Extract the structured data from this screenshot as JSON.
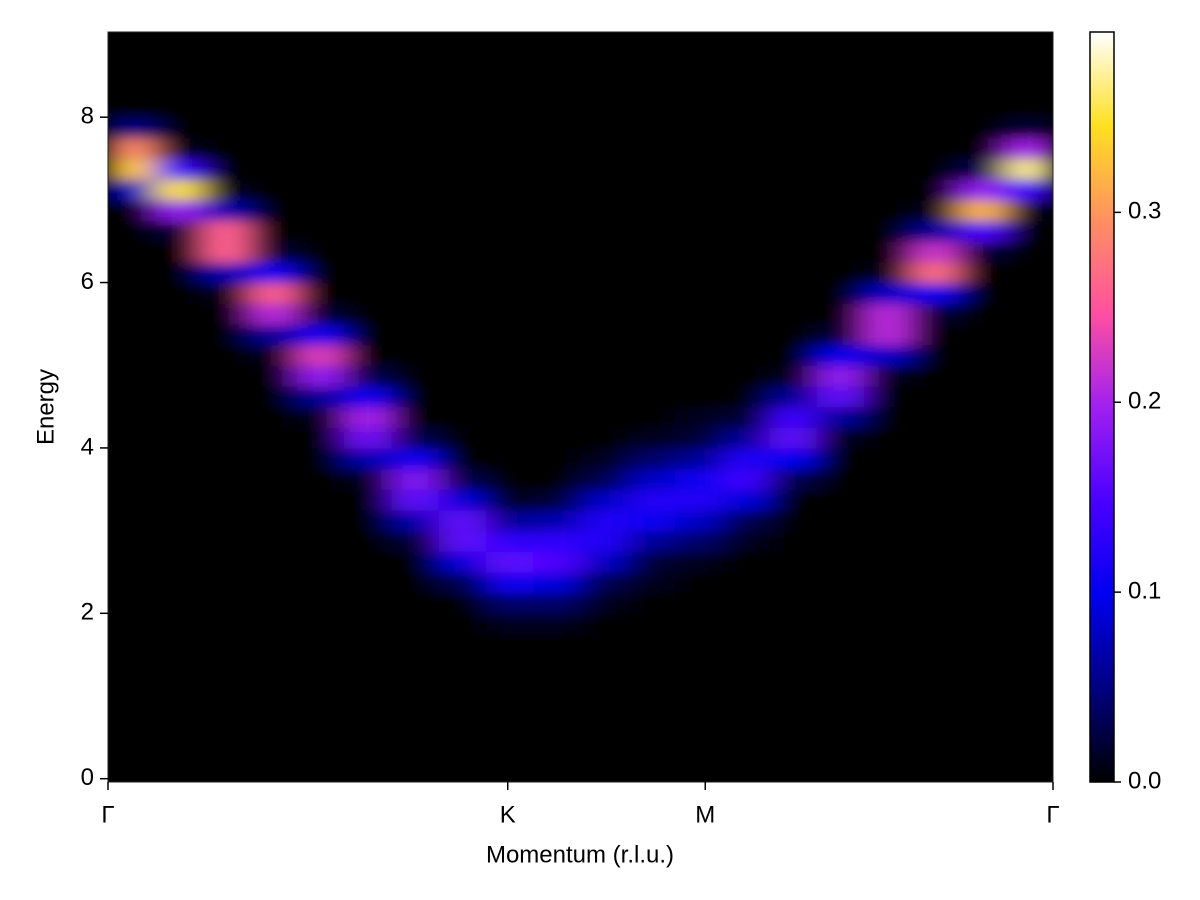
{
  "chart_data": {
    "type": "heatmap",
    "xlabel": "Momentum (r.l.u.)",
    "ylabel": "Energy",
    "xlim": [
      0,
      1
    ],
    "ylim": [
      -0.04,
      9.03
    ],
    "xticks": [
      {
        "value": 0,
        "label": "Γ"
      },
      {
        "value": 0.423,
        "label": "K"
      },
      {
        "value": 0.632,
        "label": "M"
      },
      {
        "value": 1,
        "label": "Γ"
      }
    ],
    "yticks": [
      0,
      2,
      4,
      6,
      8
    ],
    "xbins": [
      0,
      0.05,
      0.1,
      0.15,
      0.2,
      0.25,
      0.3,
      0.35,
      0.4,
      0.45,
      0.5,
      0.55,
      0.6,
      0.65,
      0.7,
      0.75,
      0.8,
      0.85,
      0.9,
      0.95,
      1
    ],
    "ybins": [
      0,
      0.25,
      0.5,
      0.75,
      1,
      1.25,
      1.5,
      1.75,
      2,
      2.25,
      2.5,
      2.75,
      3,
      3.25,
      3.5,
      3.75,
      4,
      4.25,
      4.5,
      4.75,
      5,
      5.25,
      5.5,
      5.75,
      6,
      6.25,
      6.5,
      6.75,
      7,
      7.25,
      7.5,
      7.75,
      8,
      8.25,
      8.5,
      8.75,
      9
    ],
    "values": [
      [
        0,
        0,
        0,
        0,
        0,
        0,
        0,
        0,
        0,
        0,
        0,
        0,
        0,
        0,
        0,
        0,
        0,
        0,
        0,
        0
      ],
      [
        0,
        0,
        0,
        0,
        0,
        0,
        0,
        0,
        0,
        0,
        0,
        0,
        0,
        0,
        0,
        0,
        0,
        0,
        0,
        0
      ],
      [
        0,
        0,
        0,
        0,
        0,
        0,
        0,
        0,
        0,
        0,
        0,
        0,
        0,
        0,
        0,
        0,
        0,
        0,
        0,
        0
      ],
      [
        0,
        0,
        0,
        0,
        0,
        0,
        0,
        0,
        0,
        0,
        0,
        0,
        0,
        0,
        0,
        0,
        0,
        0,
        0,
        0
      ],
      [
        0,
        0,
        0,
        0,
        0,
        0,
        0,
        0,
        0,
        0,
        0,
        0,
        0,
        0,
        0,
        0,
        0,
        0,
        0,
        0
      ],
      [
        0,
        0,
        0,
        0,
        0,
        0,
        0,
        0,
        0,
        0,
        0,
        0,
        0,
        0,
        0,
        0,
        0,
        0,
        0,
        0
      ],
      [
        0,
        0,
        0,
        0,
        0,
        0,
        0,
        0,
        0,
        0,
        0,
        0,
        0,
        0,
        0,
        0,
        0,
        0,
        0,
        0
      ],
      [
        0,
        0,
        0,
        0,
        0,
        0,
        0,
        0,
        0.01,
        0.01,
        0,
        0,
        0,
        0,
        0,
        0,
        0,
        0,
        0,
        0
      ],
      [
        0,
        0,
        0,
        0,
        0,
        0,
        0,
        0,
        0.04,
        0.04,
        0.01,
        0,
        0,
        0,
        0,
        0,
        0,
        0,
        0,
        0
      ],
      [
        0,
        0,
        0,
        0,
        0,
        0,
        0,
        0.03,
        0.11,
        0.09,
        0.03,
        0.01,
        0,
        0,
        0,
        0,
        0,
        0,
        0,
        0
      ],
      [
        0,
        0,
        0,
        0,
        0,
        0,
        0,
        0.09,
        0.16,
        0.15,
        0.08,
        0.02,
        0.01,
        0,
        0,
        0,
        0,
        0,
        0,
        0
      ],
      [
        0,
        0,
        0,
        0,
        0,
        0,
        0.02,
        0.16,
        0.13,
        0.13,
        0.12,
        0.06,
        0.04,
        0.01,
        0,
        0,
        0,
        0,
        0,
        0
      ],
      [
        0,
        0,
        0,
        0,
        0,
        0,
        0.07,
        0.16,
        0.06,
        0.07,
        0.12,
        0.11,
        0.08,
        0.03,
        0,
        0,
        0,
        0,
        0,
        0
      ],
      [
        0,
        0,
        0,
        0,
        0,
        0,
        0.16,
        0.09,
        0.01,
        0.02,
        0.08,
        0.12,
        0.12,
        0.09,
        0,
        0,
        0,
        0,
        0,
        0
      ],
      [
        0,
        0,
        0,
        0,
        0,
        0.01,
        0.18,
        0.03,
        0,
        0,
        0.03,
        0.08,
        0.11,
        0.14,
        0.03,
        0,
        0,
        0,
        0,
        0
      ],
      [
        0,
        0,
        0,
        0,
        0,
        0.07,
        0.11,
        0,
        0,
        0,
        0.01,
        0.04,
        0.06,
        0.12,
        0.1,
        0,
        0,
        0,
        0,
        0
      ],
      [
        0,
        0,
        0,
        0,
        0,
        0.17,
        0.03,
        0,
        0,
        0,
        0,
        0.01,
        0.02,
        0.06,
        0.16,
        0.01,
        0,
        0,
        0,
        0
      ],
      [
        0,
        0,
        0,
        0,
        0.01,
        0.2,
        0,
        0,
        0,
        0,
        0,
        0,
        0.01,
        0.02,
        0.14,
        0.06,
        0,
        0,
        0,
        0
      ],
      [
        0,
        0,
        0,
        0,
        0.06,
        0.11,
        0,
        0,
        0,
        0,
        0,
        0,
        0,
        0,
        0.06,
        0.16,
        0,
        0,
        0,
        0
      ],
      [
        0,
        0,
        0,
        0,
        0.19,
        0.03,
        0,
        0,
        0,
        0,
        0,
        0,
        0,
        0,
        0.01,
        0.19,
        0.01,
        0,
        0,
        0
      ],
      [
        0,
        0,
        0,
        0.01,
        0.23,
        0,
        0,
        0,
        0,
        0,
        0,
        0,
        0,
        0,
        0,
        0.1,
        0.08,
        0,
        0,
        0
      ],
      [
        0,
        0,
        0,
        0.06,
        0.11,
        0,
        0,
        0,
        0,
        0,
        0,
        0,
        0,
        0,
        0,
        0.02,
        0.21,
        0,
        0,
        0
      ],
      [
        0,
        0,
        0,
        0.21,
        0.02,
        0,
        0,
        0,
        0,
        0,
        0,
        0,
        0,
        0,
        0,
        0,
        0.21,
        0.02,
        0,
        0
      ],
      [
        0,
        0,
        0.01,
        0.26,
        0,
        0,
        0,
        0,
        0,
        0,
        0,
        0,
        0,
        0,
        0,
        0,
        0.08,
        0.11,
        0,
        0
      ],
      [
        0,
        0,
        0.07,
        0.11,
        0,
        0,
        0,
        0,
        0,
        0,
        0,
        0,
        0,
        0,
        0,
        0,
        0.01,
        0.27,
        0,
        0
      ],
      [
        0,
        0,
        0.26,
        0.02,
        0,
        0,
        0,
        0,
        0,
        0,
        0,
        0,
        0,
        0,
        0,
        0,
        0,
        0.22,
        0.02,
        0
      ],
      [
        0,
        0.02,
        0.26,
        0,
        0,
        0,
        0,
        0,
        0,
        0,
        0,
        0,
        0,
        0,
        0,
        0,
        0,
        0.06,
        0.15,
        0
      ],
      [
        0,
        0.19,
        0.07,
        0,
        0,
        0,
        0,
        0,
        0,
        0,
        0,
        0,
        0,
        0,
        0,
        0,
        0,
        0.01,
        0.32,
        0.01
      ],
      [
        0.08,
        0.35,
        0.01,
        0,
        0,
        0,
        0,
        0,
        0,
        0,
        0,
        0,
        0,
        0,
        0,
        0,
        0,
        0,
        0.19,
        0.14
      ],
      [
        0.33,
        0.14,
        0,
        0,
        0,
        0,
        0,
        0,
        0,
        0,
        0,
        0,
        0,
        0,
        0,
        0,
        0,
        0,
        0.03,
        0.37
      ],
      [
        0.29,
        0.01,
        0,
        0,
        0,
        0,
        0,
        0,
        0,
        0,
        0,
        0,
        0,
        0,
        0,
        0,
        0,
        0,
        0,
        0.2
      ],
      [
        0.05,
        0,
        0,
        0,
        0,
        0,
        0,
        0,
        0,
        0,
        0,
        0,
        0,
        0,
        0,
        0,
        0,
        0,
        0,
        0.02
      ],
      [
        0,
        0,
        0,
        0,
        0,
        0,
        0,
        0,
        0,
        0,
        0,
        0,
        0,
        0,
        0,
        0,
        0,
        0,
        0,
        0
      ],
      [
        0,
        0,
        0,
        0,
        0,
        0,
        0,
        0,
        0,
        0,
        0,
        0,
        0,
        0,
        0,
        0,
        0,
        0,
        0,
        0
      ],
      [
        0,
        0,
        0,
        0,
        0,
        0,
        0,
        0,
        0,
        0,
        0,
        0,
        0,
        0,
        0,
        0,
        0,
        0,
        0,
        0
      ],
      [
        0,
        0,
        0,
        0,
        0,
        0,
        0,
        0,
        0,
        0,
        0,
        0,
        0,
        0,
        0,
        0,
        0,
        0,
        0,
        0
      ]
    ],
    "colormap": [
      "#000000",
      "#000080",
      "#0000f0",
      "#4a00ff",
      "#a020f0",
      "#ff50a0",
      "#ff9060",
      "#ffe020",
      "#ffffff"
    ],
    "colorbar": {
      "lim": [
        0,
        0.395
      ],
      "ticks": [
        {
          "value": 0,
          "label": "0.0"
        },
        0.1,
        0.2,
        0.3
      ]
    }
  }
}
